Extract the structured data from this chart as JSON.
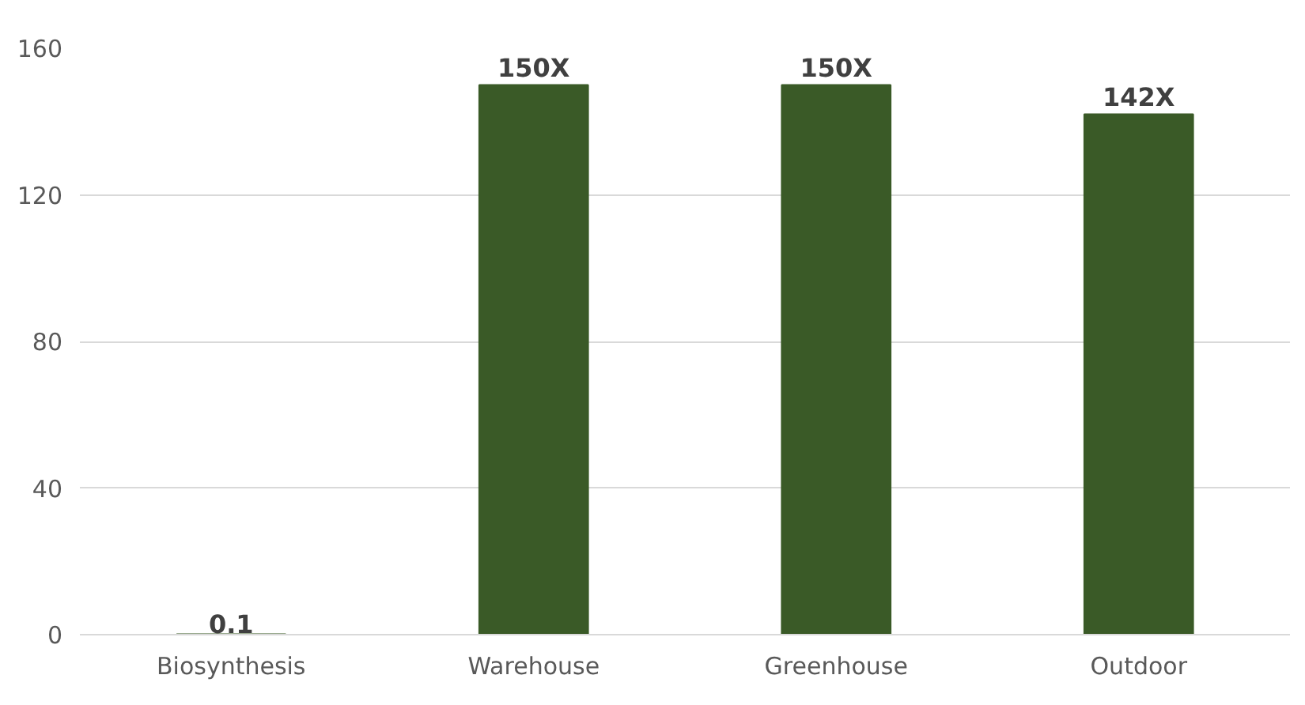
{
  "chart_data": {
    "type": "bar",
    "categories": [
      "Biosynthesis",
      "Warehouse",
      "Greenhouse",
      "Outdoor"
    ],
    "values": [
      0.1,
      150,
      150,
      142
    ],
    "value_labels": [
      "0.1",
      "150X",
      "150X",
      "142X"
    ],
    "color": "#3a5a27",
    "ylim": [
      0,
      160
    ],
    "yticks": [
      0,
      40,
      80,
      120,
      160
    ],
    "grid": "y"
  }
}
